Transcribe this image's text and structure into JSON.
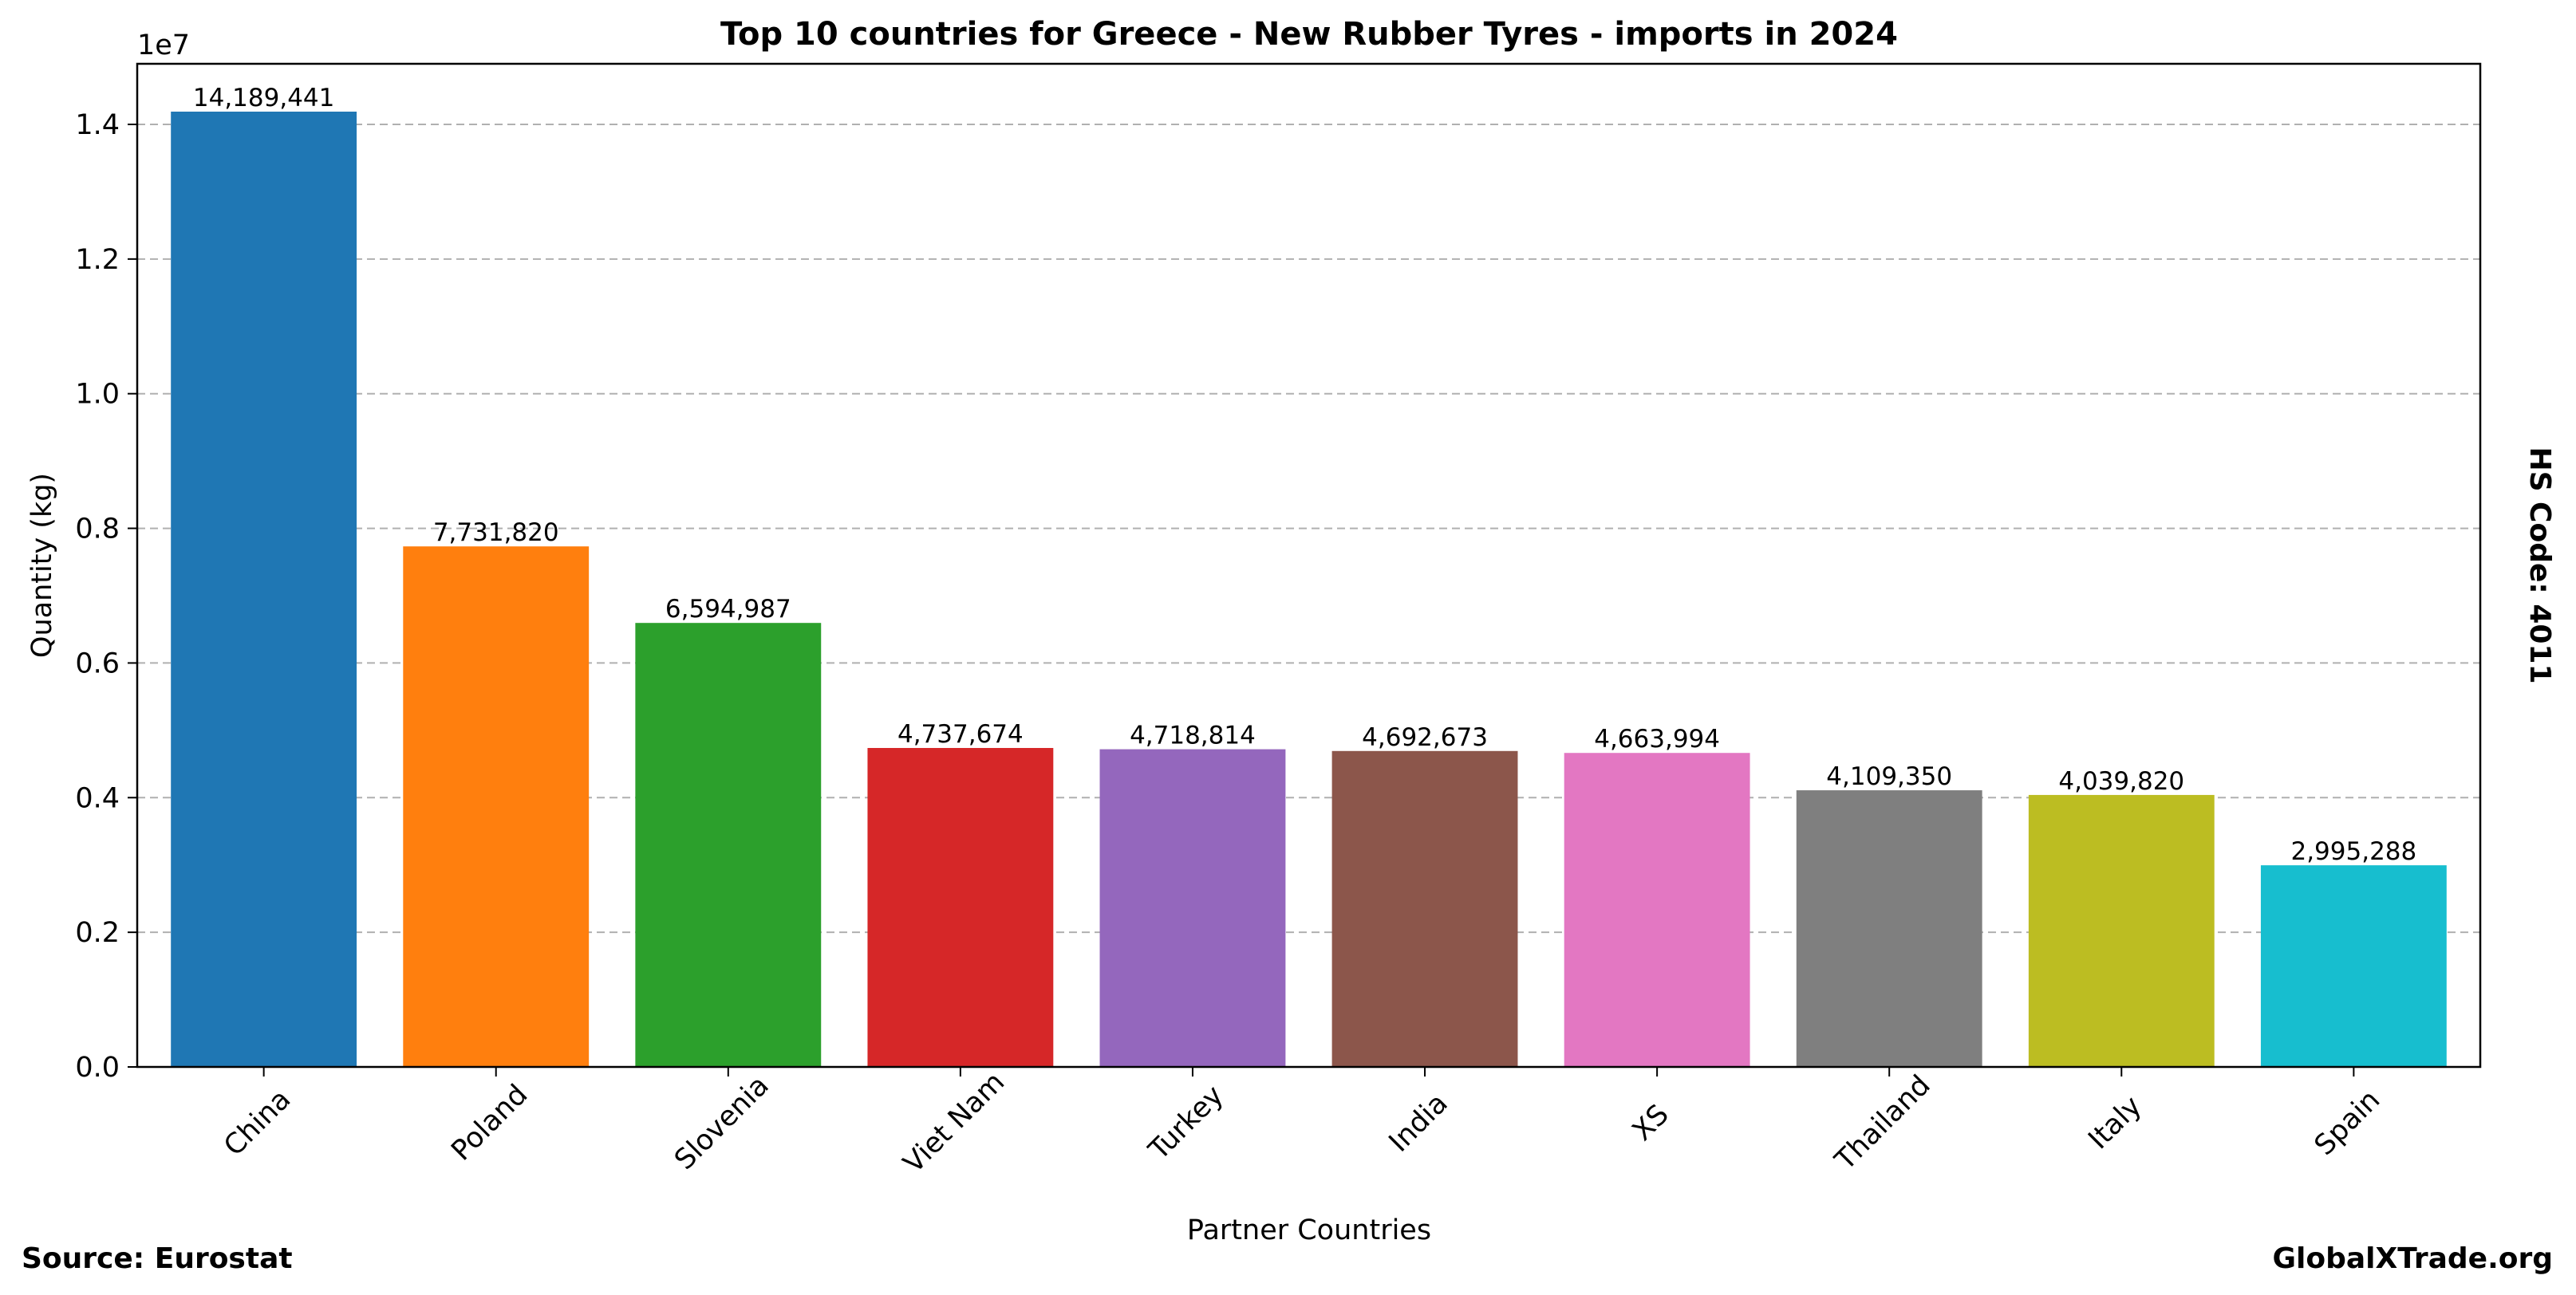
{
  "chart_data": {
    "type": "bar",
    "title": "Top 10 countries for Greece - New Rubber Tyres - imports in 2024",
    "xlabel": "Partner Countries",
    "ylabel": "Quantity (kg)",
    "y_scale_label": "1e7",
    "y_scale_factor": 10000000,
    "ylim": [
      0,
      14900000
    ],
    "yticks": [
      0,
      2000000,
      4000000,
      6000000,
      8000000,
      10000000,
      12000000,
      14000000
    ],
    "ytick_labels": [
      "0.0",
      "0.2",
      "0.4",
      "0.6",
      "0.8",
      "1.0",
      "1.2",
      "1.4"
    ],
    "grid": "y-dashed",
    "categories": [
      "China",
      "Poland",
      "Slovenia",
      "Viet Nam",
      "Turkey",
      "India",
      "XS",
      "Thailand",
      "Italy",
      "Spain"
    ],
    "values": [
      14189441,
      7731820,
      6594987,
      4737674,
      4718814,
      4692673,
      4663994,
      4109350,
      4039820,
      2995288
    ],
    "value_labels": [
      "14,189,441",
      "7,731,820",
      "6,594,987",
      "4,737,674",
      "4,718,814",
      "4,692,673",
      "4,663,994",
      "4,109,350",
      "4,039,820",
      "2,995,288"
    ],
    "colors": [
      "#1f77b4",
      "#ff7f0e",
      "#2ca02c",
      "#d62728",
      "#9467bd",
      "#8c564b",
      "#e377c2",
      "#7f7f7f",
      "#bcbd22",
      "#17becf"
    ]
  },
  "footer": {
    "source": "Source: Eurostat",
    "brand": "GlobalXTrade.org"
  },
  "side_note": "HS Code: 4011"
}
